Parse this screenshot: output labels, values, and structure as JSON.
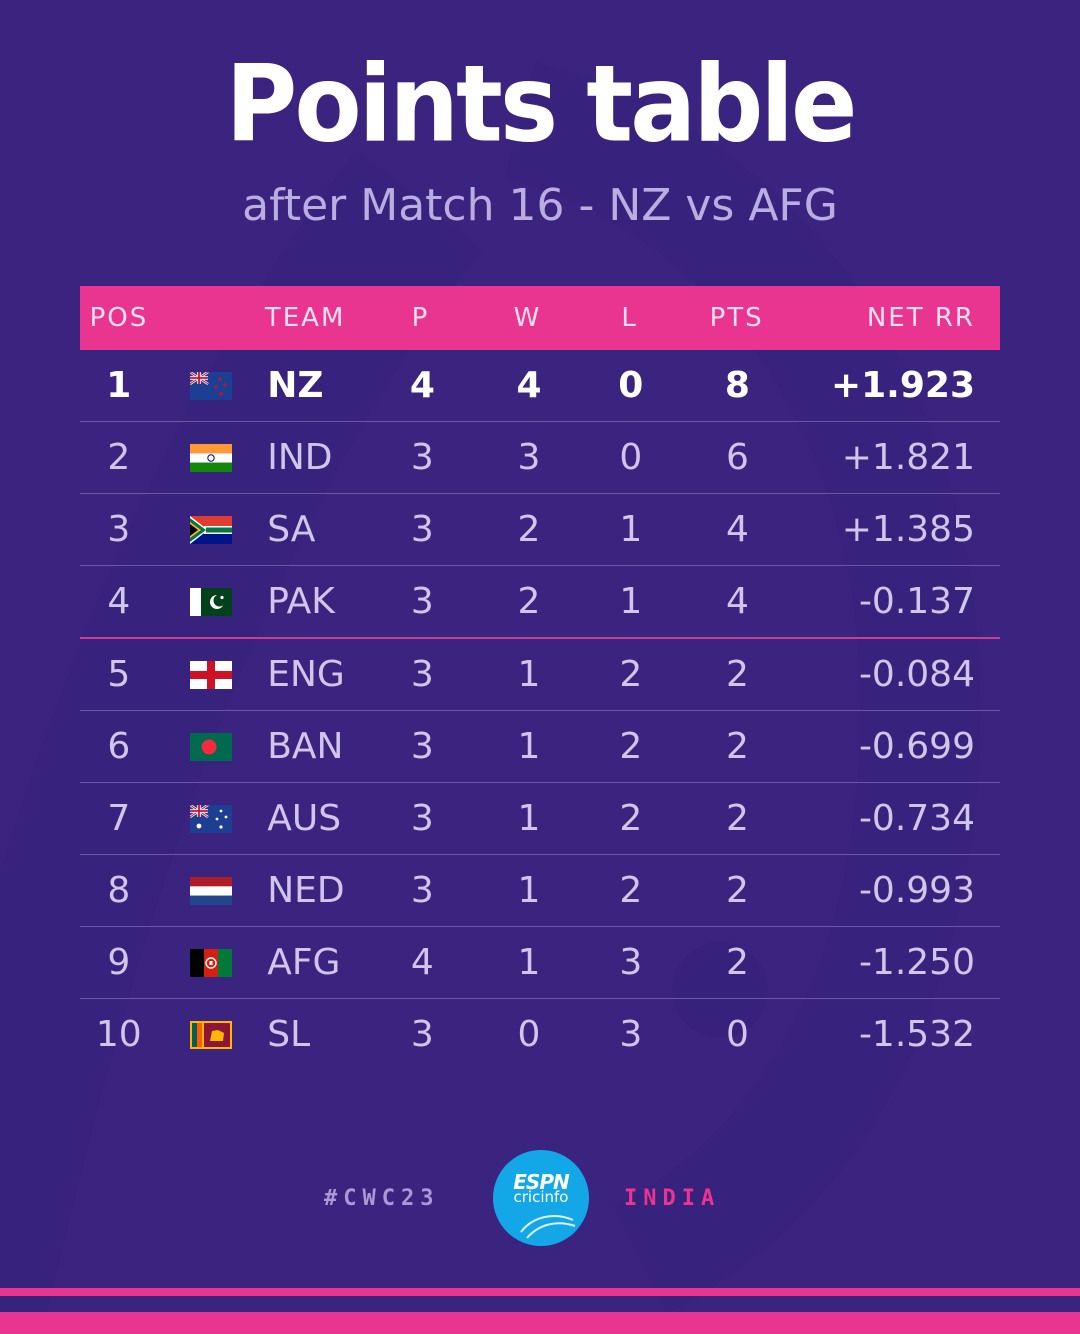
{
  "header": {
    "title": "Points table",
    "subtitle": "after Match 16 - NZ vs AFG"
  },
  "table": {
    "columns": {
      "pos": "POS",
      "team": "TEAM",
      "p": "P",
      "w": "W",
      "l": "L",
      "pts": "PTS",
      "nrr": "NET RR"
    },
    "rows": [
      {
        "pos": "1",
        "team": "NZ",
        "flag": "new-zealand-flag-icon",
        "p": "4",
        "w": "4",
        "l": "0",
        "pts": "8",
        "nrr": "+1.923"
      },
      {
        "pos": "2",
        "team": "IND",
        "flag": "india-flag-icon",
        "p": "3",
        "w": "3",
        "l": "0",
        "pts": "6",
        "nrr": "+1.821"
      },
      {
        "pos": "3",
        "team": "SA",
        "flag": "south-africa-flag-icon",
        "p": "3",
        "w": "2",
        "l": "1",
        "pts": "4",
        "nrr": "+1.385"
      },
      {
        "pos": "4",
        "team": "PAK",
        "flag": "pakistan-flag-icon",
        "p": "3",
        "w": "2",
        "l": "1",
        "pts": "4",
        "nrr": "-0.137"
      },
      {
        "pos": "5",
        "team": "ENG",
        "flag": "england-flag-icon",
        "p": "3",
        "w": "1",
        "l": "2",
        "pts": "2",
        "nrr": "-0.084"
      },
      {
        "pos": "6",
        "team": "BAN",
        "flag": "bangladesh-flag-icon",
        "p": "3",
        "w": "1",
        "l": "2",
        "pts": "2",
        "nrr": "-0.699"
      },
      {
        "pos": "7",
        "team": "AUS",
        "flag": "australia-flag-icon",
        "p": "3",
        "w": "1",
        "l": "2",
        "pts": "2",
        "nrr": "-0.734"
      },
      {
        "pos": "8",
        "team": "NED",
        "flag": "netherlands-flag-icon",
        "p": "3",
        "w": "1",
        "l": "2",
        "pts": "2",
        "nrr": "-0.993"
      },
      {
        "pos": "9",
        "team": "AFG",
        "flag": "afghanistan-flag-icon",
        "p": "4",
        "w": "1",
        "l": "3",
        "pts": "2",
        "nrr": "-1.250"
      },
      {
        "pos": "10",
        "team": "SL",
        "flag": "sri-lanka-flag-icon",
        "p": "3",
        "w": "0",
        "l": "3",
        "pts": "0",
        "nrr": "-1.532"
      }
    ]
  },
  "footer": {
    "hashtag": "#CWC23",
    "logo_brand": "ESPN",
    "logo_sub": "cricinfo",
    "region": "INDIA"
  },
  "colors": {
    "background": "#3b2480",
    "accent_pink": "#e9358f",
    "logo_blue": "#14a7e8"
  }
}
